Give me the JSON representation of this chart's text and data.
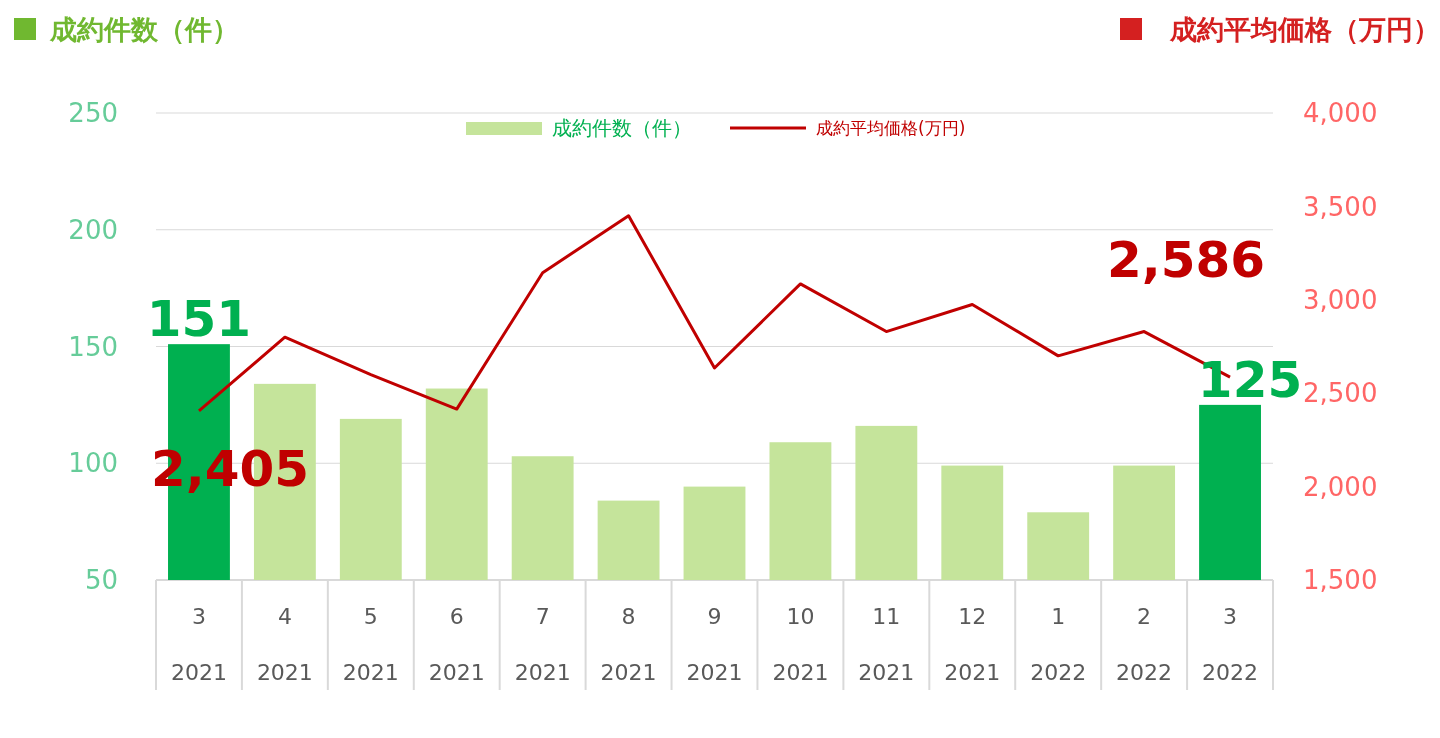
{
  "chart_data": {
    "type": "bar",
    "ylabel": "成約件数（件）",
    "y2label": "成約平均価格（万円）",
    "categories": [
      "3\n2021",
      "4\n2021",
      "5\n2021",
      "6\n2021",
      "7\n2021",
      "8\n2021",
      "9\n2021",
      "10\n2021",
      "11\n2021",
      "12\n2021",
      "1\n2022",
      "2\n2022",
      "3\n2022"
    ],
    "series": [
      {
        "name": "成約件数（件）",
        "color": "#c5e49b",
        "colors": [
          "#00b050",
          "#c5e49b",
          "#c5e49b",
          "#c5e49b",
          "#c5e49b",
          "#c5e49b",
          "#c5e49b",
          "#c5e49b",
          "#c5e49b",
          "#c5e49b",
          "#c5e49b",
          "#c5e49b",
          "#00b050"
        ],
        "values": [
          151,
          134,
          119,
          132,
          103,
          84,
          90,
          109,
          116,
          99,
          79,
          99,
          125
        ],
        "value_labels": [
          "151",
          null,
          null,
          null,
          null,
          null,
          null,
          null,
          null,
          null,
          null,
          null,
          "125"
        ]
      },
      {
        "name": "成約平均価格(万円)",
        "type": "line",
        "axis": "y2",
        "color": "#c00000",
        "values": [
          2405,
          2800,
          2600,
          2415,
          3145,
          3450,
          2635,
          3085,
          2830,
          2975,
          2700,
          2830,
          2586
        ],
        "value_labels": [
          "2,405",
          null,
          null,
          null,
          null,
          null,
          null,
          null,
          null,
          null,
          null,
          null,
          "2,586"
        ]
      }
    ],
    "ylim": [
      50,
      250
    ],
    "yticks": [
      50,
      100,
      150,
      200,
      250
    ],
    "y2lim": [
      1500,
      4000
    ],
    "y2ticks": [
      {
        "value": 1500,
        "label": "1,500"
      },
      {
        "value": 2000,
        "label": "2,000"
      },
      {
        "value": 2500,
        "label": "2,500"
      },
      {
        "value": 3000,
        "label": "3,000"
      },
      {
        "value": 3500,
        "label": "3,500"
      },
      {
        "value": 4000,
        "label": "4,000"
      }
    ],
    "grid": "y",
    "legend": "top"
  }
}
